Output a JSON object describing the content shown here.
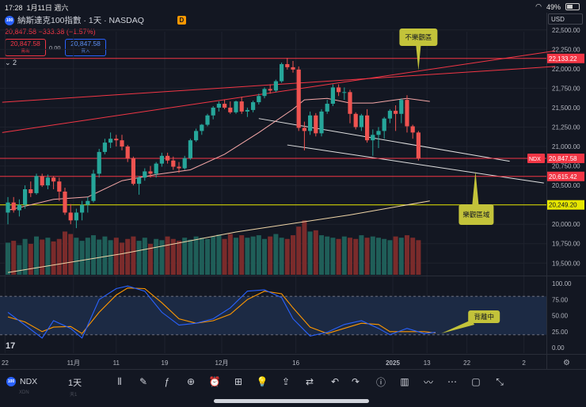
{
  "status_bar": {
    "time": "17:28",
    "date": "1月11日 週六",
    "battery": "49%",
    "battery_fraction": 0.49
  },
  "header": {
    "logo_text": "100",
    "title": "納斯達克100指數 · 1天 · NASDAQ",
    "badge": "D",
    "quote": "20,847.58  −333.38 (−1.57%)",
    "sell_price": "20,847.58",
    "sell_label": "賣出",
    "spread": "0.00",
    "buy_price": "20,847.58",
    "buy_label": "買入",
    "indicator_collapse": "⌄ 2",
    "currency": "USD"
  },
  "toolbar": {
    "symbol": "NDX",
    "interval": "1天",
    "ghost_a": "XDN",
    "ghost_b": "天1",
    "icons": [
      "candles-icon",
      "brush-icon",
      "fx-icon",
      "add-icon",
      "alarm-icon",
      "grid-icon",
      "bulb-icon",
      "share-icon",
      "undo-compare-icon",
      "undo-icon",
      "redo-icon",
      "info-icon",
      "chart-icon",
      "trend-icon",
      "more-icon",
      "square-icon",
      "fullscreen-icon"
    ]
  },
  "colors": {
    "up": "#26a69a",
    "down": "#ef5350",
    "bg": "#131722",
    "grid": "#1e222d",
    "annotation": "#c3c33a",
    "stoch_k": "#2962ff",
    "stoch_d": "#ff9800",
    "ma": "#f7a8a8",
    "ma_long": "#f0d6a8"
  },
  "chart_data": {
    "type": "candlestick",
    "title": "納斯達克100指數 · 1天 · NASDAQ",
    "symbol": "NDX",
    "price_axis": {
      "min": 19350,
      "max": 22620,
      "ticks": [
        "22,500.00",
        "22,250.00",
        "22,000.00",
        "21,750.00",
        "21,500.00",
        "21,250.00",
        "21,000.00",
        "20,750.00",
        "20,500.00",
        "20,250.00",
        "20,000.00",
        "19,750.00",
        "19,500.00"
      ],
      "tick_values": [
        22500,
        22250,
        22000,
        21750,
        21500,
        21250,
        21000,
        20750,
        20500,
        20250,
        20000,
        19750,
        19500
      ]
    },
    "x_axis": {
      "labels": [
        "22",
        "11月",
        "11",
        "19",
        "12月",
        "16",
        "2025",
        "13",
        "22",
        "2"
      ],
      "label_index": [
        -0.5,
        11.5,
        19,
        27.5,
        37.5,
        50.5,
        67.5,
        73.5,
        80.5,
        90.5
      ]
    },
    "candles": [
      [
        20150,
        20350,
        20000,
        20280
      ],
      [
        20280,
        20350,
        20150,
        20180
      ],
      [
        20180,
        20320,
        20100,
        20250
      ],
      [
        20250,
        20500,
        20200,
        20450
      ],
      [
        20450,
        20550,
        20350,
        20400
      ],
      [
        20400,
        20650,
        20380,
        20620
      ],
      [
        20620,
        20650,
        20480,
        20500
      ],
      [
        20500,
        20640,
        20450,
        20600
      ],
      [
        20600,
        20620,
        20450,
        20550
      ],
      [
        20550,
        20600,
        20300,
        20420
      ],
      [
        20420,
        20470,
        20120,
        20150
      ],
      [
        20150,
        20260,
        20000,
        20050
      ],
      [
        20050,
        20200,
        19950,
        20150
      ],
      [
        20150,
        20300,
        20050,
        20250
      ],
      [
        20250,
        20350,
        20150,
        20300
      ],
      [
        20300,
        20700,
        20280,
        20650
      ],
      [
        20650,
        20970,
        20600,
        20930
      ],
      [
        20930,
        21100,
        20900,
        21050
      ],
      [
        21050,
        21180,
        20980,
        21100
      ],
      [
        21100,
        21150,
        21000,
        21080
      ],
      [
        21080,
        21150,
        20950,
        21000
      ],
      [
        21000,
        21020,
        20800,
        20850
      ],
      [
        20850,
        20870,
        20500,
        20520
      ],
      [
        20520,
        20620,
        20380,
        20600
      ],
      [
        20600,
        20720,
        20560,
        20680
      ],
      [
        20680,
        20750,
        20600,
        20650
      ],
      [
        20650,
        20800,
        20600,
        20780
      ],
      [
        20780,
        20920,
        20740,
        20880
      ],
      [
        20880,
        20920,
        20780,
        20820
      ],
      [
        20820,
        20870,
        20700,
        20740
      ],
      [
        20740,
        20800,
        20660,
        20720
      ],
      [
        20720,
        20880,
        20700,
        20850
      ],
      [
        20850,
        21100,
        20830,
        21080
      ],
      [
        21080,
        21230,
        21060,
        21200
      ],
      [
        21200,
        21290,
        21150,
        21280
      ],
      [
        21280,
        21420,
        21260,
        21400
      ],
      [
        21400,
        21520,
        21350,
        21500
      ],
      [
        21500,
        21580,
        21450,
        21550
      ],
      [
        21550,
        21600,
        21480,
        21500
      ],
      [
        21500,
        21580,
        21420,
        21440
      ],
      [
        21440,
        21590,
        21420,
        21580
      ],
      [
        21580,
        21640,
        21420,
        21450
      ],
      [
        21450,
        21500,
        21380,
        21470
      ],
      [
        21470,
        21590,
        21440,
        21570
      ],
      [
        21570,
        21680,
        21540,
        21650
      ],
      [
        21650,
        21760,
        21620,
        21740
      ],
      [
        21740,
        21800,
        21680,
        21720
      ],
      [
        21720,
        21860,
        21700,
        21840
      ],
      [
        21840,
        22080,
        21820,
        22060
      ],
      [
        22060,
        22140,
        21990,
        22020
      ],
      [
        22020,
        22100,
        21950,
        21990
      ],
      [
        21990,
        22030,
        21200,
        21240
      ],
      [
        21240,
        21320,
        20950,
        21200
      ],
      [
        21200,
        21450,
        21150,
        21400
      ],
      [
        21400,
        21430,
        21130,
        21170
      ],
      [
        21170,
        21480,
        21130,
        21450
      ],
      [
        21450,
        21600,
        21420,
        21550
      ],
      [
        21550,
        21800,
        21520,
        21760
      ],
      [
        21760,
        21800,
        21650,
        21700
      ],
      [
        21700,
        21760,
        21600,
        21700
      ],
      [
        21700,
        21730,
        21300,
        21420
      ],
      [
        21420,
        21440,
        21220,
        21250
      ],
      [
        21250,
        21420,
        21200,
        21400
      ],
      [
        21400,
        21480,
        21050,
        21080
      ],
      [
        21080,
        21220,
        20880,
        21150
      ],
      [
        21150,
        21250,
        20980,
        21200
      ],
      [
        21200,
        21380,
        21100,
        21360
      ],
      [
        21360,
        21480,
        21300,
        21460
      ],
      [
        21460,
        21530,
        21200,
        21420
      ],
      [
        21420,
        21620,
        21300,
        21600
      ],
      [
        21600,
        21660,
        21180,
        21260
      ],
      [
        21260,
        21280,
        21100,
        21180
      ],
      [
        21180,
        21200,
        20820,
        20847.58
      ]
    ],
    "volume_max": 100,
    "volume": [
      52,
      55,
      48,
      58,
      50,
      62,
      57,
      60,
      54,
      58,
      70,
      66,
      60,
      55,
      60,
      64,
      57,
      62,
      56,
      60,
      52,
      58,
      62,
      55,
      60,
      50,
      58,
      56,
      62,
      58,
      55,
      60,
      57,
      62,
      60,
      58,
      62,
      65,
      58,
      66,
      60,
      64,
      60,
      62,
      64,
      58,
      62,
      66,
      60,
      58,
      64,
      78,
      88,
      70,
      72,
      64,
      62,
      60,
      58,
      62,
      60,
      58,
      64,
      60,
      62,
      60,
      58,
      56,
      62,
      60,
      64,
      60,
      56
    ],
    "ma_short": [
      [
        0,
        20180
      ],
      [
        8,
        20320
      ],
      [
        14,
        20350
      ],
      [
        20,
        20560
      ],
      [
        26,
        20640
      ],
      [
        32,
        20700
      ],
      [
        38,
        20900
      ],
      [
        44,
        21180
      ],
      [
        50,
        21480
      ],
      [
        52,
        21600
      ],
      [
        56,
        21620
      ],
      [
        60,
        21560
      ],
      [
        64,
        21560
      ],
      [
        68,
        21600
      ],
      [
        70,
        21620
      ],
      [
        74,
        21580
      ]
    ],
    "ma_long": [
      [
        0,
        19380
      ],
      [
        20,
        19620
      ],
      [
        40,
        19900
      ],
      [
        60,
        20120
      ],
      [
        74,
        20300
      ]
    ],
    "horizontal_levels": [
      {
        "value": 22133.22,
        "label": "22,133.22",
        "color": "#f23645"
      },
      {
        "value": 20847.58,
        "label": "NDX  20,847.58",
        "color": "#f23645"
      },
      {
        "value": 20615.42,
        "label": "20,615.42",
        "color": "#f23645"
      },
      {
        "value": 20249.2,
        "label": "20,249.20",
        "color": "#e6e600"
      }
    ],
    "channel_lines": [
      {
        "from": [
          -1,
          21180
        ],
        "to": [
          96,
          22230
        ],
        "color": "#f23645"
      },
      {
        "from": [
          -1,
          21570
        ],
        "to": [
          96,
          22030
        ],
        "color": "#f23645"
      },
      {
        "from": [
          44,
          21360
        ],
        "to": [
          88,
          20810
        ],
        "color": "#e0e0e0"
      },
      {
        "from": [
          49,
          21020
        ],
        "to": [
          94,
          20530
        ],
        "color": "#e0e0e0"
      }
    ],
    "annotations": [
      {
        "text": "不樂觀區",
        "anchor": [
          72,
          21980
        ]
      },
      {
        "text": "樂觀區域",
        "anchor": [
          82,
          20680
        ]
      }
    ],
    "stochastic": {
      "axis_ticks": [
        "100.00",
        "75.00",
        "50.00",
        "25.00",
        "0.00"
      ],
      "tick_values": [
        100,
        75,
        50,
        25,
        0
      ],
      "bands": [
        80,
        20
      ],
      "k": [
        [
          0,
          55
        ],
        [
          3,
          35
        ],
        [
          6,
          15
        ],
        [
          8,
          42
        ],
        [
          11,
          30
        ],
        [
          13,
          15
        ],
        [
          16,
          75
        ],
        [
          19,
          92
        ],
        [
          21,
          96
        ],
        [
          24,
          88
        ],
        [
          27,
          55
        ],
        [
          30,
          35
        ],
        [
          33,
          38
        ],
        [
          36,
          45
        ],
        [
          39,
          62
        ],
        [
          42,
          88
        ],
        [
          45,
          90
        ],
        [
          48,
          78
        ],
        [
          50,
          45
        ],
        [
          53,
          18
        ],
        [
          56,
          24
        ],
        [
          59,
          36
        ],
        [
          62,
          42
        ],
        [
          65,
          30
        ],
        [
          67,
          20
        ],
        [
          70,
          30
        ],
        [
          73,
          22
        ],
        [
          75,
          24
        ]
      ],
      "d": [
        [
          0,
          48
        ],
        [
          3,
          40
        ],
        [
          6,
          25
        ],
        [
          8,
          32
        ],
        [
          11,
          33
        ],
        [
          13,
          22
        ],
        [
          16,
          55
        ],
        [
          19,
          82
        ],
        [
          21,
          93
        ],
        [
          24,
          92
        ],
        [
          27,
          70
        ],
        [
          30,
          45
        ],
        [
          33,
          38
        ],
        [
          36,
          42
        ],
        [
          39,
          52
        ],
        [
          42,
          75
        ],
        [
          45,
          88
        ],
        [
          48,
          84
        ],
        [
          50,
          62
        ],
        [
          53,
          32
        ],
        [
          56,
          22
        ],
        [
          59,
          30
        ],
        [
          62,
          38
        ],
        [
          65,
          36
        ],
        [
          67,
          25
        ],
        [
          70,
          25
        ],
        [
          73,
          25
        ],
        [
          75,
          23
        ]
      ],
      "annotation": {
        "text": "背離中",
        "anchor": [
          76,
          22
        ]
      }
    }
  }
}
